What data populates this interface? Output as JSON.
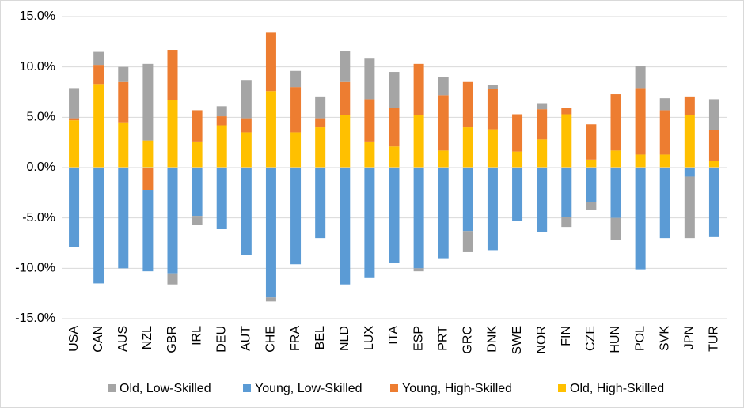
{
  "chart_data": {
    "type": "stacked_bar",
    "categories": [
      "USA",
      "CAN",
      "AUS",
      "NZL",
      "GBR",
      "IRL",
      "DEU",
      "AUT",
      "CHE",
      "FRA",
      "BEL",
      "NLD",
      "LUX",
      "ITA",
      "ESP",
      "PRT",
      "GRC",
      "DNK",
      "SWE",
      "NOR",
      "FIN",
      "CZE",
      "HUN",
      "POL",
      "SVK",
      "JPN",
      "TUR"
    ],
    "series": [
      {
        "name": "Old, Low-Skilled",
        "color": "#a5a5a5",
        "values": [
          3.0,
          1.3,
          1.5,
          7.6,
          -1.1,
          -0.9,
          1.0,
          3.8,
          -0.4,
          1.6,
          2.1,
          3.1,
          4.1,
          3.6,
          -0.3,
          1.8,
          -2.1,
          0.4,
          0,
          0.6,
          -1.0,
          -0.8,
          -2.2,
          2.2,
          1.2,
          -6.1,
          3.1
        ]
      },
      {
        "name": "Young, Low-Skilled",
        "color": "#5b9bd5",
        "values": [
          -7.9,
          -11.5,
          -10.0,
          -8.1,
          -10.5,
          -4.8,
          -6.1,
          -8.7,
          -12.9,
          -9.6,
          -7.0,
          -11.6,
          -10.9,
          -9.5,
          -10.0,
          -9.0,
          -6.3,
          -8.2,
          -5.3,
          -6.4,
          -4.9,
          -3.4,
          -5.0,
          -10.1,
          -7.0,
          -0.9,
          -6.9
        ]
      },
      {
        "name": "Young, High-Skilled",
        "color": "#ed7d31",
        "values": [
          0.2,
          1.9,
          4.0,
          -2.2,
          5.0,
          3.1,
          0.9,
          1.4,
          5.8,
          4.5,
          0.9,
          3.3,
          4.2,
          3.8,
          5.1,
          5.5,
          4.5,
          4.0,
          3.7,
          3.0,
          0.6,
          3.5,
          5.6,
          6.6,
          4.4,
          1.8,
          3.0
        ]
      },
      {
        "name": "Old, High-Skilled",
        "color": "#ffc000",
        "values": [
          4.7,
          8.3,
          4.5,
          2.7,
          6.7,
          2.6,
          4.2,
          3.5,
          7.6,
          3.5,
          4.0,
          5.2,
          2.6,
          2.1,
          5.2,
          1.7,
          4.0,
          3.8,
          1.6,
          2.8,
          5.3,
          0.8,
          1.7,
          1.3,
          1.3,
          5.2,
          0.7
        ]
      }
    ],
    "ylim": [
      -15,
      15
    ],
    "yticks": [
      {
        "value": -15,
        "label": "-15.0%"
      },
      {
        "value": -10,
        "label": "-10.0%"
      },
      {
        "value": -5,
        "label": "-5.0%"
      },
      {
        "value": 0,
        "label": "0.0%"
      },
      {
        "value": 5,
        "label": "5.0%"
      },
      {
        "value": 10,
        "label": "10.0%"
      },
      {
        "value": 15,
        "label": "15.0%"
      }
    ],
    "grid": true,
    "legend": "bottom"
  }
}
